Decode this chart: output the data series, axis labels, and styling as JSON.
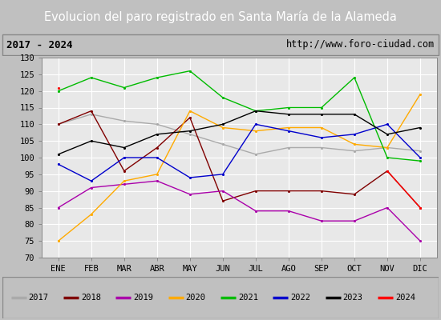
{
  "title": "Evolucion del paro registrado en Santa María de la Alameda",
  "subtitle_left": "2017 - 2024",
  "subtitle_right": "http://www.foro-ciudad.com",
  "months": [
    "ENE",
    "FEB",
    "MAR",
    "ABR",
    "MAY",
    "JUN",
    "JUL",
    "AGO",
    "SEP",
    "OCT",
    "NOV",
    "DIC"
  ],
  "ylim": [
    70,
    130
  ],
  "yticks": [
    70,
    75,
    80,
    85,
    90,
    95,
    100,
    105,
    110,
    115,
    120,
    125,
    130
  ],
  "series": {
    "2017": {
      "color": "#aaaaaa",
      "data": [
        110,
        113,
        111,
        110,
        107,
        104,
        101,
        103,
        103,
        102,
        103,
        102
      ]
    },
    "2018": {
      "color": "#800000",
      "data": [
        110,
        114,
        96,
        103,
        112,
        87,
        90,
        90,
        90,
        89,
        96,
        85
      ]
    },
    "2019": {
      "color": "#aa00aa",
      "data": [
        85,
        91,
        92,
        93,
        89,
        90,
        84,
        84,
        81,
        81,
        85,
        75
      ]
    },
    "2020": {
      "color": "#ffaa00",
      "data": [
        75,
        83,
        93,
        95,
        114,
        109,
        108,
        109,
        109,
        104,
        103,
        119
      ]
    },
    "2021": {
      "color": "#00bb00",
      "data": [
        120,
        124,
        121,
        124,
        126,
        118,
        114,
        115,
        115,
        124,
        100,
        99
      ]
    },
    "2022": {
      "color": "#0000cc",
      "data": [
        98,
        93,
        100,
        100,
        94,
        95,
        110,
        108,
        106,
        107,
        110,
        100
      ]
    },
    "2023": {
      "color": "#000000",
      "data": [
        101,
        105,
        103,
        107,
        108,
        110,
        114,
        113,
        113,
        113,
        107,
        109
      ]
    },
    "2024": {
      "color": "#ff0000",
      "data": [
        121,
        null,
        null,
        null,
        null,
        null,
        null,
        null,
        null,
        null,
        96,
        85
      ]
    }
  },
  "title_bg_color": "#5b8dd9",
  "title_font_color": "#ffffff",
  "subtitle_bg_color": "#f0f0f0",
  "plot_bg_color": "#e8e8e8",
  "grid_color": "#ffffff",
  "border_color": "#888888",
  "legend_bg_color": "#f8f8f8"
}
